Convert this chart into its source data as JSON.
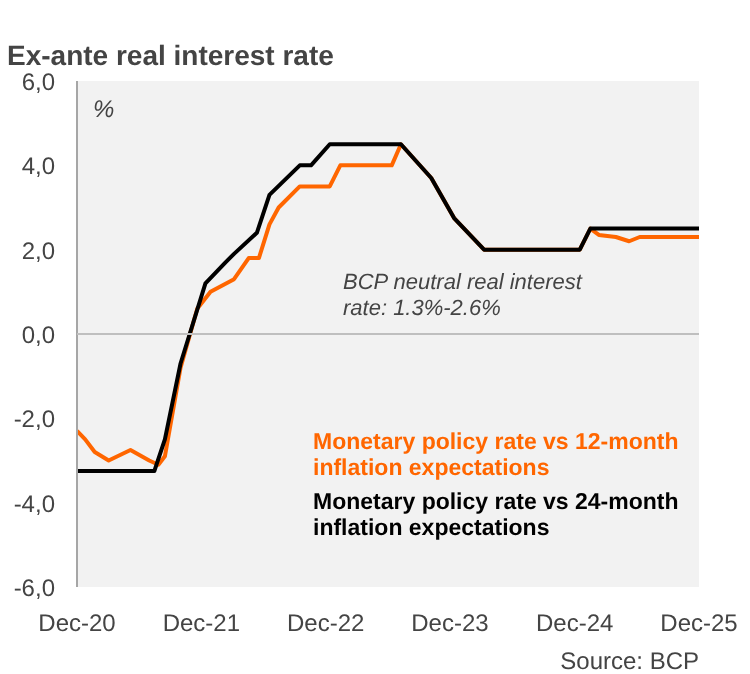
{
  "chart_data": {
    "type": "line",
    "title": "Ex-ante real interest rate",
    "ylabel": "%",
    "annotations": [
      "BCP neutral real interest rate: 1.3%-2.6%",
      "Source: BCP"
    ],
    "xlim": [
      "2020-12-01",
      "2025-12-01"
    ],
    "xticks": [
      {
        "value": "2020-12-01",
        "label": "Dec-20"
      },
      {
        "value": "2021-12-01",
        "label": "Dec-21"
      },
      {
        "value": "2022-12-01",
        "label": "Dec-22"
      },
      {
        "value": "2023-12-01",
        "label": "Dec-23"
      },
      {
        "value": "2024-12-01",
        "label": "Dec-24"
      },
      {
        "value": "2025-12-01",
        "label": "Dec-25"
      }
    ],
    "ylim": [
      -6,
      6
    ],
    "yticks": [
      {
        "value": -6,
        "label": "-6,0"
      },
      {
        "value": -4,
        "label": "-4,0"
      },
      {
        "value": -2,
        "label": "-2,0"
      },
      {
        "value": 0,
        "label": "0,0"
      },
      {
        "value": 2,
        "label": "2,0"
      },
      {
        "value": 4,
        "label": "4,0"
      },
      {
        "value": 6,
        "label": "6,0"
      }
    ],
    "legend": "bottom right",
    "line_style": "solid",
    "ref_lines": [
      {
        "axis": "y",
        "value": 0,
        "label": null,
        "color": "#bfbfbf"
      }
    ],
    "series": [
      {
        "name": "Monetary policy rate vs 12-month inflation expectations",
        "color": "#ff6600",
        "x": [
          "2020-12-01",
          "2020-12-25",
          "2021-01-22",
          "2021-03-04",
          "2021-05-07",
          "2021-07-01",
          "2021-07-28",
          "2021-08-16",
          "2021-10-01",
          "2021-11-19",
          "2021-12-28",
          "2022-03-07",
          "2022-04-19",
          "2022-05-19",
          "2022-06-19",
          "2022-07-16",
          "2022-09-16",
          "2022-12-13",
          "2023-01-13",
          "2023-06-13",
          "2023-07-10",
          "2023-10-07",
          "2023-12-13",
          "2024-03-10",
          "2024-12-16",
          "2025-01-16",
          "2025-02-10",
          "2025-04-01",
          "2025-05-10",
          "2025-06-10",
          "2025-12-01"
        ],
        "values": [
          -2.3,
          -2.5,
          -2.8,
          -3.0,
          -2.75,
          -3.0,
          -3.1,
          -2.9,
          -0.8,
          0.6,
          1.0,
          1.3,
          1.8,
          1.8,
          2.6,
          3.0,
          3.5,
          3.5,
          4.0,
          4.0,
          4.5,
          3.7,
          2.75,
          2.0,
          2.0,
          2.5,
          2.35,
          2.3,
          2.2,
          2.3,
          2.3
        ]
      },
      {
        "name": "Monetary policy rate vs 24-month inflation expectations",
        "color": "#000000",
        "x": [
          "2020-12-01",
          "2021-07-16",
          "2021-08-16",
          "2021-10-01",
          "2021-12-13",
          "2022-02-10",
          "2022-03-07",
          "2022-05-13",
          "2022-06-19",
          "2022-09-16",
          "2022-10-19",
          "2022-12-13",
          "2023-07-10",
          "2023-10-07",
          "2023-12-13",
          "2024-03-10",
          "2024-12-16",
          "2025-01-16",
          "2025-12-01"
        ],
        "values": [
          -3.25,
          -3.25,
          -2.5,
          -0.7,
          1.2,
          1.7,
          1.9,
          2.4,
          3.3,
          4.0,
          4.0,
          4.5,
          4.5,
          3.7,
          2.75,
          2.0,
          2.0,
          2.5,
          2.5
        ]
      }
    ]
  }
}
